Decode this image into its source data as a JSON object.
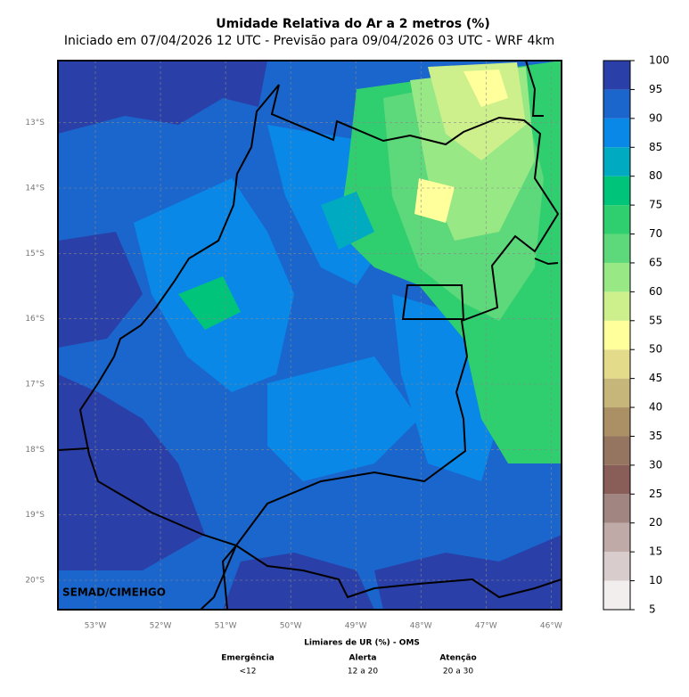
{
  "map": {
    "title": "Umidade Relativa do Ar a 2 metros (%)",
    "subtitle": "Iniciado em 07/04/2026 12 UTC - Previsão para 09/04/2026 03 UTC - WRF 4km",
    "credit": "SEMAD/CIMEHGO",
    "xlim": [
      -53.575,
      -45.84
    ],
    "ylim": [
      -20.45,
      -12.05
    ],
    "xticks": [
      {
        "value": -53,
        "label": "53°W"
      },
      {
        "value": -52,
        "label": "52°W"
      },
      {
        "value": -51,
        "label": "51°W"
      },
      {
        "value": -50,
        "label": "50°W"
      },
      {
        "value": -49,
        "label": "49°W"
      },
      {
        "value": -48,
        "label": "48°W"
      },
      {
        "value": -47,
        "label": "47°W"
      },
      {
        "value": -46,
        "label": "46°W"
      }
    ],
    "yticks": [
      {
        "value": -13,
        "label": "13°S"
      },
      {
        "value": -14,
        "label": "14°S"
      },
      {
        "value": -15,
        "label": "15°S"
      },
      {
        "value": -16,
        "label": "16°S"
      },
      {
        "value": -17,
        "label": "17°S"
      },
      {
        "value": -18,
        "label": "18°S"
      },
      {
        "value": -19,
        "label": "19°S"
      },
      {
        "value": -20,
        "label": "20°S"
      }
    ],
    "grid": true
  },
  "colorbar": {
    "ticks": [
      5,
      10,
      15,
      20,
      25,
      30,
      35,
      40,
      45,
      50,
      55,
      60,
      65,
      70,
      75,
      80,
      85,
      90,
      95,
      100
    ],
    "colors": [
      "#f2eeee",
      "#d8cccc",
      "#c0aaa8",
      "#a08580",
      "#8a5e58",
      "#957560",
      "#ab9066",
      "#c7b67a",
      "#e3da8a",
      "#ffff9c",
      "#cdf08c",
      "#98e886",
      "#5dd87a",
      "#2fcf6f",
      "#00c47a",
      "#00aac0",
      "#0a88e8",
      "#1a66cc",
      "#2b3fa8"
    ]
  },
  "legend": {
    "title": "Limiares de UR (%) - OMS",
    "levels": [
      {
        "name": "Emergência",
        "range": "<12"
      },
      {
        "name": "Alerta",
        "range": "12 a 20"
      },
      {
        "name": "Atenção",
        "range": "20 a 30"
      }
    ]
  }
}
